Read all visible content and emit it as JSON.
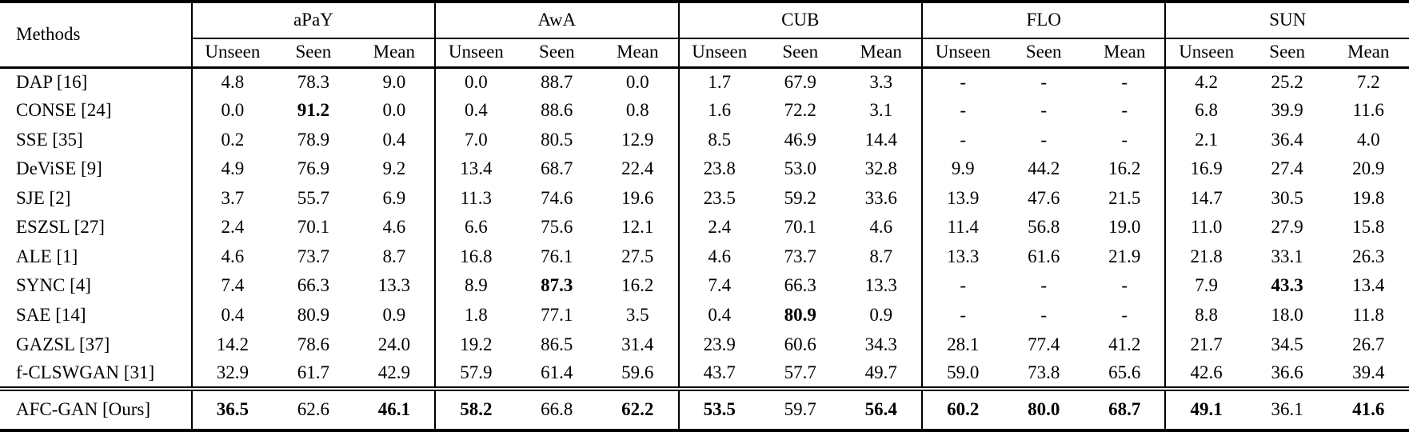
{
  "table": {
    "methods_header": "Methods",
    "groups": [
      {
        "label": "aPaY",
        "subcols": [
          "Unseen",
          "Seen",
          "Mean"
        ]
      },
      {
        "label": "AwA",
        "subcols": [
          "Unseen",
          "Seen",
          "Mean"
        ]
      },
      {
        "label": "CUB",
        "subcols": [
          "Unseen",
          "Seen",
          "Mean"
        ]
      },
      {
        "label": "FLO",
        "subcols": [
          "Unseen",
          "Seen",
          "Mean"
        ]
      },
      {
        "label": "SUN",
        "subcols": [
          "Unseen",
          "Seen",
          "Mean"
        ]
      }
    ],
    "rows": [
      {
        "method": "DAP [16]",
        "values": [
          "4.8",
          "78.3",
          "9.0",
          "0.0",
          "88.7",
          "0.0",
          "1.7",
          "67.9",
          "3.3",
          "-",
          "-",
          "-",
          "4.2",
          "25.2",
          "7.2"
        ],
        "bold": []
      },
      {
        "method": "CONSE [24]",
        "values": [
          "0.0",
          "91.2",
          "0.0",
          "0.4",
          "88.6",
          "0.8",
          "1.6",
          "72.2",
          "3.1",
          "-",
          "-",
          "-",
          "6.8",
          "39.9",
          "11.6"
        ],
        "bold": [
          1
        ]
      },
      {
        "method": "SSE [35]",
        "values": [
          "0.2",
          "78.9",
          "0.4",
          "7.0",
          "80.5",
          "12.9",
          "8.5",
          "46.9",
          "14.4",
          "-",
          "-",
          "-",
          "2.1",
          "36.4",
          "4.0"
        ],
        "bold": []
      },
      {
        "method": "DeViSE [9]",
        "values": [
          "4.9",
          "76.9",
          "9.2",
          "13.4",
          "68.7",
          "22.4",
          "23.8",
          "53.0",
          "32.8",
          "9.9",
          "44.2",
          "16.2",
          "16.9",
          "27.4",
          "20.9"
        ],
        "bold": []
      },
      {
        "method": "SJE [2]",
        "values": [
          "3.7",
          "55.7",
          "6.9",
          "11.3",
          "74.6",
          "19.6",
          "23.5",
          "59.2",
          "33.6",
          "13.9",
          "47.6",
          "21.5",
          "14.7",
          "30.5",
          "19.8"
        ],
        "bold": []
      },
      {
        "method": "ESZSL [27]",
        "values": [
          "2.4",
          "70.1",
          "4.6",
          "6.6",
          "75.6",
          "12.1",
          "2.4",
          "70.1",
          "4.6",
          "11.4",
          "56.8",
          "19.0",
          "11.0",
          "27.9",
          "15.8"
        ],
        "bold": []
      },
      {
        "method": "ALE [1]",
        "values": [
          "4.6",
          "73.7",
          "8.7",
          "16.8",
          "76.1",
          "27.5",
          "4.6",
          "73.7",
          "8.7",
          "13.3",
          "61.6",
          "21.9",
          "21.8",
          "33.1",
          "26.3"
        ],
        "bold": []
      },
      {
        "method": "SYNC [4]",
        "values": [
          "7.4",
          "66.3",
          "13.3",
          "8.9",
          "87.3",
          "16.2",
          "7.4",
          "66.3",
          "13.3",
          "-",
          "-",
          "-",
          "7.9",
          "43.3",
          "13.4"
        ],
        "bold": [
          4,
          13
        ]
      },
      {
        "method": "SAE [14]",
        "values": [
          "0.4",
          "80.9",
          "0.9",
          "1.8",
          "77.1",
          "3.5",
          "0.4",
          "80.9",
          "0.9",
          "-",
          "-",
          "-",
          "8.8",
          "18.0",
          "11.8"
        ],
        "bold": [
          7
        ]
      },
      {
        "method": "GAZSL [37]",
        "values": [
          "14.2",
          "78.6",
          "24.0",
          "19.2",
          "86.5",
          "31.4",
          "23.9",
          "60.6",
          "34.3",
          "28.1",
          "77.4",
          "41.2",
          "21.7",
          "34.5",
          "26.7"
        ],
        "bold": []
      },
      {
        "method": "f-CLSWGAN [31]",
        "values": [
          "32.9",
          "61.7",
          "42.9",
          "57.9",
          "61.4",
          "59.6",
          "43.7",
          "57.7",
          "49.7",
          "59.0",
          "73.8",
          "65.6",
          "42.6",
          "36.6",
          "39.4"
        ],
        "bold": []
      },
      {
        "method": "AFC-GAN [Ours]",
        "values": [
          "36.5",
          "62.6",
          "46.1",
          "58.2",
          "66.8",
          "62.2",
          "53.5",
          "59.7",
          "56.4",
          "60.2",
          "80.0",
          "68.7",
          "49.1",
          "36.1",
          "41.6"
        ],
        "bold": [
          0,
          2,
          3,
          5,
          6,
          8,
          9,
          10,
          11,
          12,
          14
        ],
        "final": true
      }
    ],
    "colors": {
      "text": "#000000",
      "background": "#ffffff",
      "rule": "#000000"
    }
  }
}
